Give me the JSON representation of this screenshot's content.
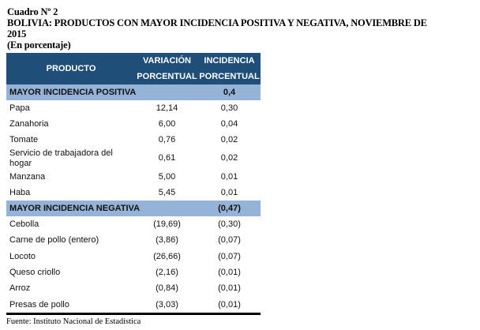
{
  "header": {
    "label": "Cuadro Nº 2",
    "title_line1": "BOLIVIA: PRODUCTOS CON MAYOR INCIDENCIA POSITIVA Y NEGATIVA, NOVIEMBRE DE",
    "title_line2": "2015",
    "unit": "(En porcentaje)"
  },
  "table": {
    "columns": {
      "product": "PRODUCTO",
      "var_top": "VARIACIÓN",
      "var_bottom": "PORCENTUAL",
      "inc_top": "INCIDENCIA",
      "inc_bottom": "PORCENTUAL"
    },
    "positive": {
      "label": "MAYOR INCIDENCIA POSITIVA",
      "total": "0,4",
      "rows": [
        {
          "product": "Papa",
          "variation": "12,14",
          "incidence": "0,30"
        },
        {
          "product": "Zanahoria",
          "variation": "6,00",
          "incidence": "0,04"
        },
        {
          "product": "Tomate",
          "variation": "0,76",
          "incidence": "0,02"
        },
        {
          "product": "Servicio de trabajadora del hogar",
          "variation": "0,61",
          "incidence": "0,02"
        },
        {
          "product": "Manzana",
          "variation": "5,00",
          "incidence": "0,01"
        },
        {
          "product": "Haba",
          "variation": "5,45",
          "incidence": "0,01"
        }
      ]
    },
    "negative": {
      "label": "MAYOR INCIDENCIA NEGATIVA",
      "total": "(0,47)",
      "rows": [
        {
          "product": "Cebolla",
          "variation": "(19,69)",
          "incidence": "(0,30)"
        },
        {
          "product": "Carne de pollo (entero)",
          "variation": "(3,86)",
          "incidence": "(0,07)"
        },
        {
          "product": "Locoto",
          "variation": "(26,66)",
          "incidence": "(0,07)"
        },
        {
          "product": "Queso criollo",
          "variation": "(2,16)",
          "incidence": "(0,01)"
        },
        {
          "product": "Arroz",
          "variation": "(0,84)",
          "incidence": "(0,01)"
        },
        {
          "product": "Presas de pollo",
          "variation": "(3,03)",
          "incidence": "(0,01)"
        }
      ]
    }
  },
  "source": "Fuente: Instituto Nacional de Estadística",
  "colors": {
    "header_bg": "#1f4e79",
    "section_bg": "#95b3d7"
  }
}
